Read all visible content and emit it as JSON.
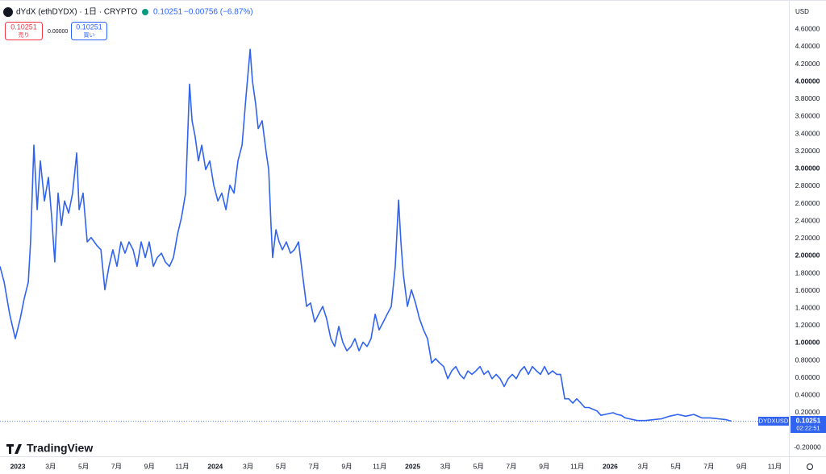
{
  "chart_data": {
    "type": "line",
    "title": "dYdX (ethDYDX) · 1日 · CRYPTO",
    "last_price": 0.10251,
    "change": "−0.00756 (−6.87%)",
    "sell_label": "売り",
    "buy_label": "買い",
    "spread": "0.00000",
    "currency": "USD",
    "symbol": "DYDXUSD",
    "countdown": "02:22:51",
    "brand": "TradingView",
    "color": "#2f63f0",
    "grid": false,
    "xlim": [
      -1.08,
      46.86
    ],
    "ylim": [
      -0.3,
      4.89
    ],
    "xticks": [
      {
        "value": 0,
        "label": "2023"
      },
      {
        "value": 2,
        "label": "3月"
      },
      {
        "value": 4,
        "label": "5月"
      },
      {
        "value": 6,
        "label": "7月"
      },
      {
        "value": 8,
        "label": "9月"
      },
      {
        "value": 10,
        "label": "11月"
      },
      {
        "value": 12,
        "label": "2024"
      },
      {
        "value": 14,
        "label": "3月"
      },
      {
        "value": 16,
        "label": "5月"
      },
      {
        "value": 18,
        "label": "7月"
      },
      {
        "value": 20,
        "label": "9月"
      },
      {
        "value": 22,
        "label": "11月"
      },
      {
        "value": 24,
        "label": "2025"
      },
      {
        "value": 26,
        "label": "3月"
      },
      {
        "value": 28,
        "label": "5月"
      },
      {
        "value": 30,
        "label": "7月"
      },
      {
        "value": 32,
        "label": "9月"
      },
      {
        "value": 34,
        "label": "11月"
      },
      {
        "value": 36,
        "label": "2026"
      },
      {
        "value": 38,
        "label": "3月"
      },
      {
        "value": 40,
        "label": "5月"
      },
      {
        "value": 42,
        "label": "7月"
      },
      {
        "value": 44,
        "label": "9月"
      },
      {
        "value": 46,
        "label": "11月"
      }
    ],
    "yticks": [
      {
        "value": -0.2,
        "label": "-0.20000"
      },
      {
        "value": 0.2,
        "label": "0.20000"
      },
      {
        "value": 0.4,
        "label": "0.40000"
      },
      {
        "value": 0.6,
        "label": "0.60000"
      },
      {
        "value": 0.8,
        "label": "0.80000"
      },
      {
        "value": 1,
        "label": "1.00000"
      },
      {
        "value": 1.2,
        "label": "1.20000"
      },
      {
        "value": 1.4,
        "label": "1.40000"
      },
      {
        "value": 1.6,
        "label": "1.60000"
      },
      {
        "value": 1.8,
        "label": "1.80000"
      },
      {
        "value": 2,
        "label": "2.00000"
      },
      {
        "value": 2.2,
        "label": "2.20000"
      },
      {
        "value": 2.4,
        "label": "2.40000"
      },
      {
        "value": 2.6,
        "label": "2.60000"
      },
      {
        "value": 2.8,
        "label": "2.80000"
      },
      {
        "value": 3,
        "label": "3.00000"
      },
      {
        "value": 3.2,
        "label": "3.20000"
      },
      {
        "value": 3.4,
        "label": "3.40000"
      },
      {
        "value": 3.6,
        "label": "3.60000"
      },
      {
        "value": 3.8,
        "label": "3.80000"
      },
      {
        "value": 4,
        "label": "4.00000"
      },
      {
        "value": 4.2,
        "label": "4.20000"
      },
      {
        "value": 4.4,
        "label": "4.40000"
      },
      {
        "value": 4.6,
        "label": "4.60000"
      }
    ],
    "x": [
      -1.08,
      -0.83,
      -0.49,
      -0.15,
      0.15,
      0.39,
      0.64,
      0.78,
      0.98,
      1.18,
      1.37,
      1.62,
      1.86,
      2.06,
      2.25,
      2.45,
      2.65,
      2.84,
      3.09,
      3.33,
      3.58,
      3.73,
      3.97,
      4.22,
      4.46,
      4.8,
      5.05,
      5.29,
      5.54,
      5.78,
      6.03,
      6.27,
      6.52,
      6.76,
      7.01,
      7.25,
      7.5,
      7.75,
      7.99,
      8.24,
      8.48,
      8.73,
      8.97,
      9.22,
      9.46,
      9.71,
      9.95,
      10.2,
      10.44,
      10.59,
      10.78,
      10.98,
      11.18,
      11.42,
      11.67,
      11.91,
      12.16,
      12.4,
      12.65,
      12.89,
      13.14,
      13.38,
      13.63,
      13.87,
      14.12,
      14.26,
      14.46,
      14.61,
      14.85,
      15.1,
      15.25,
      15.39,
      15.49,
      15.69,
      15.88,
      16.08,
      16.32,
      16.57,
      16.81,
      17.06,
      17.3,
      17.55,
      17.79,
      18.04,
      18.28,
      18.53,
      18.77,
      19.02,
      19.26,
      19.51,
      19.75,
      20,
      20.25,
      20.49,
      20.74,
      20.98,
      21.23,
      21.47,
      21.72,
      21.96,
      22.21,
      22.45,
      22.7,
      22.94,
      23.14,
      23.28,
      23.43,
      23.68,
      23.92,
      24.17,
      24.41,
      24.66,
      24.9,
      25.15,
      25.39,
      25.64,
      25.88,
      26.13,
      26.37,
      26.62,
      26.86,
      27.11,
      27.35,
      27.6,
      27.84,
      28.09,
      28.33,
      28.58,
      28.82,
      29.07,
      29.31,
      29.56,
      29.8,
      30.05,
      30.29,
      30.54,
      30.78,
      31.03,
      31.27,
      31.52,
      31.76,
      32.01,
      32.25,
      32.5,
      32.75,
      32.99,
      33.24,
      33.48,
      33.73,
      33.97,
      34.22,
      34.46,
      34.71,
      34.95,
      35.2,
      35.44,
      35.69,
      35.93,
      36.18,
      36.42,
      36.67,
      36.91,
      37.16,
      37.65,
      38.14,
      38.63,
      39.12,
      39.61,
      40.1,
      40.59,
      41.08,
      41.57,
      42.06,
      42.55,
      43.04,
      43.38
    ],
    "values": [
      1.88,
      1.7,
      1.33,
      1.05,
      1.28,
      1.51,
      1.7,
      2.16,
      3.27,
      2.53,
      3.09,
      2.63,
      2.9,
      2.44,
      1.93,
      2.72,
      2.35,
      2.63,
      2.49,
      2.72,
      3.18,
      2.53,
      2.72,
      2.16,
      2.21,
      2.12,
      2.07,
      1.61,
      1.88,
      2.07,
      1.88,
      2.16,
      2.03,
      2.16,
      2.07,
      1.88,
      2.16,
      1.98,
      2.16,
      1.88,
      1.98,
      2.03,
      1.93,
      1.88,
      1.98,
      2.25,
      2.44,
      2.72,
      3.97,
      3.55,
      3.37,
      3.09,
      3.27,
      2.99,
      3.09,
      2.81,
      2.63,
      2.72,
      2.53,
      2.81,
      2.72,
      3.09,
      3.27,
      3.83,
      4.37,
      4.01,
      3.74,
      3.46,
      3.55,
      3.18,
      2.99,
      2.35,
      1.98,
      2.3,
      2.16,
      2.07,
      2.16,
      2.03,
      2.07,
      2.16,
      1.79,
      1.42,
      1.46,
      1.24,
      1.33,
      1.42,
      1.28,
      1.05,
      0.96,
      1.19,
      1.01,
      0.91,
      0.96,
      1.05,
      0.91,
      1.01,
      0.96,
      1.05,
      1.33,
      1.15,
      1.24,
      1.33,
      1.42,
      1.88,
      2.64,
      2.16,
      1.79,
      1.42,
      1.61,
      1.46,
      1.28,
      1.15,
      1.05,
      0.77,
      0.82,
      0.77,
      0.73,
      0.59,
      0.68,
      0.73,
      0.64,
      0.59,
      0.68,
      0.64,
      0.68,
      0.73,
      0.64,
      0.68,
      0.59,
      0.64,
      0.59,
      0.5,
      0.59,
      0.64,
      0.59,
      0.68,
      0.73,
      0.64,
      0.73,
      0.68,
      0.64,
      0.73,
      0.64,
      0.68,
      0.64,
      0.64,
      0.36,
      0.36,
      0.31,
      0.36,
      0.31,
      0.26,
      0.26,
      0.24,
      0.22,
      0.17,
      0.18,
      0.19,
      0.2,
      0.18,
      0.17,
      0.14,
      0.13,
      0.11,
      0.11,
      0.12,
      0.13,
      0.16,
      0.18,
      0.16,
      0.18,
      0.14,
      0.14,
      0.13,
      0.12,
      0.10251
    ]
  }
}
